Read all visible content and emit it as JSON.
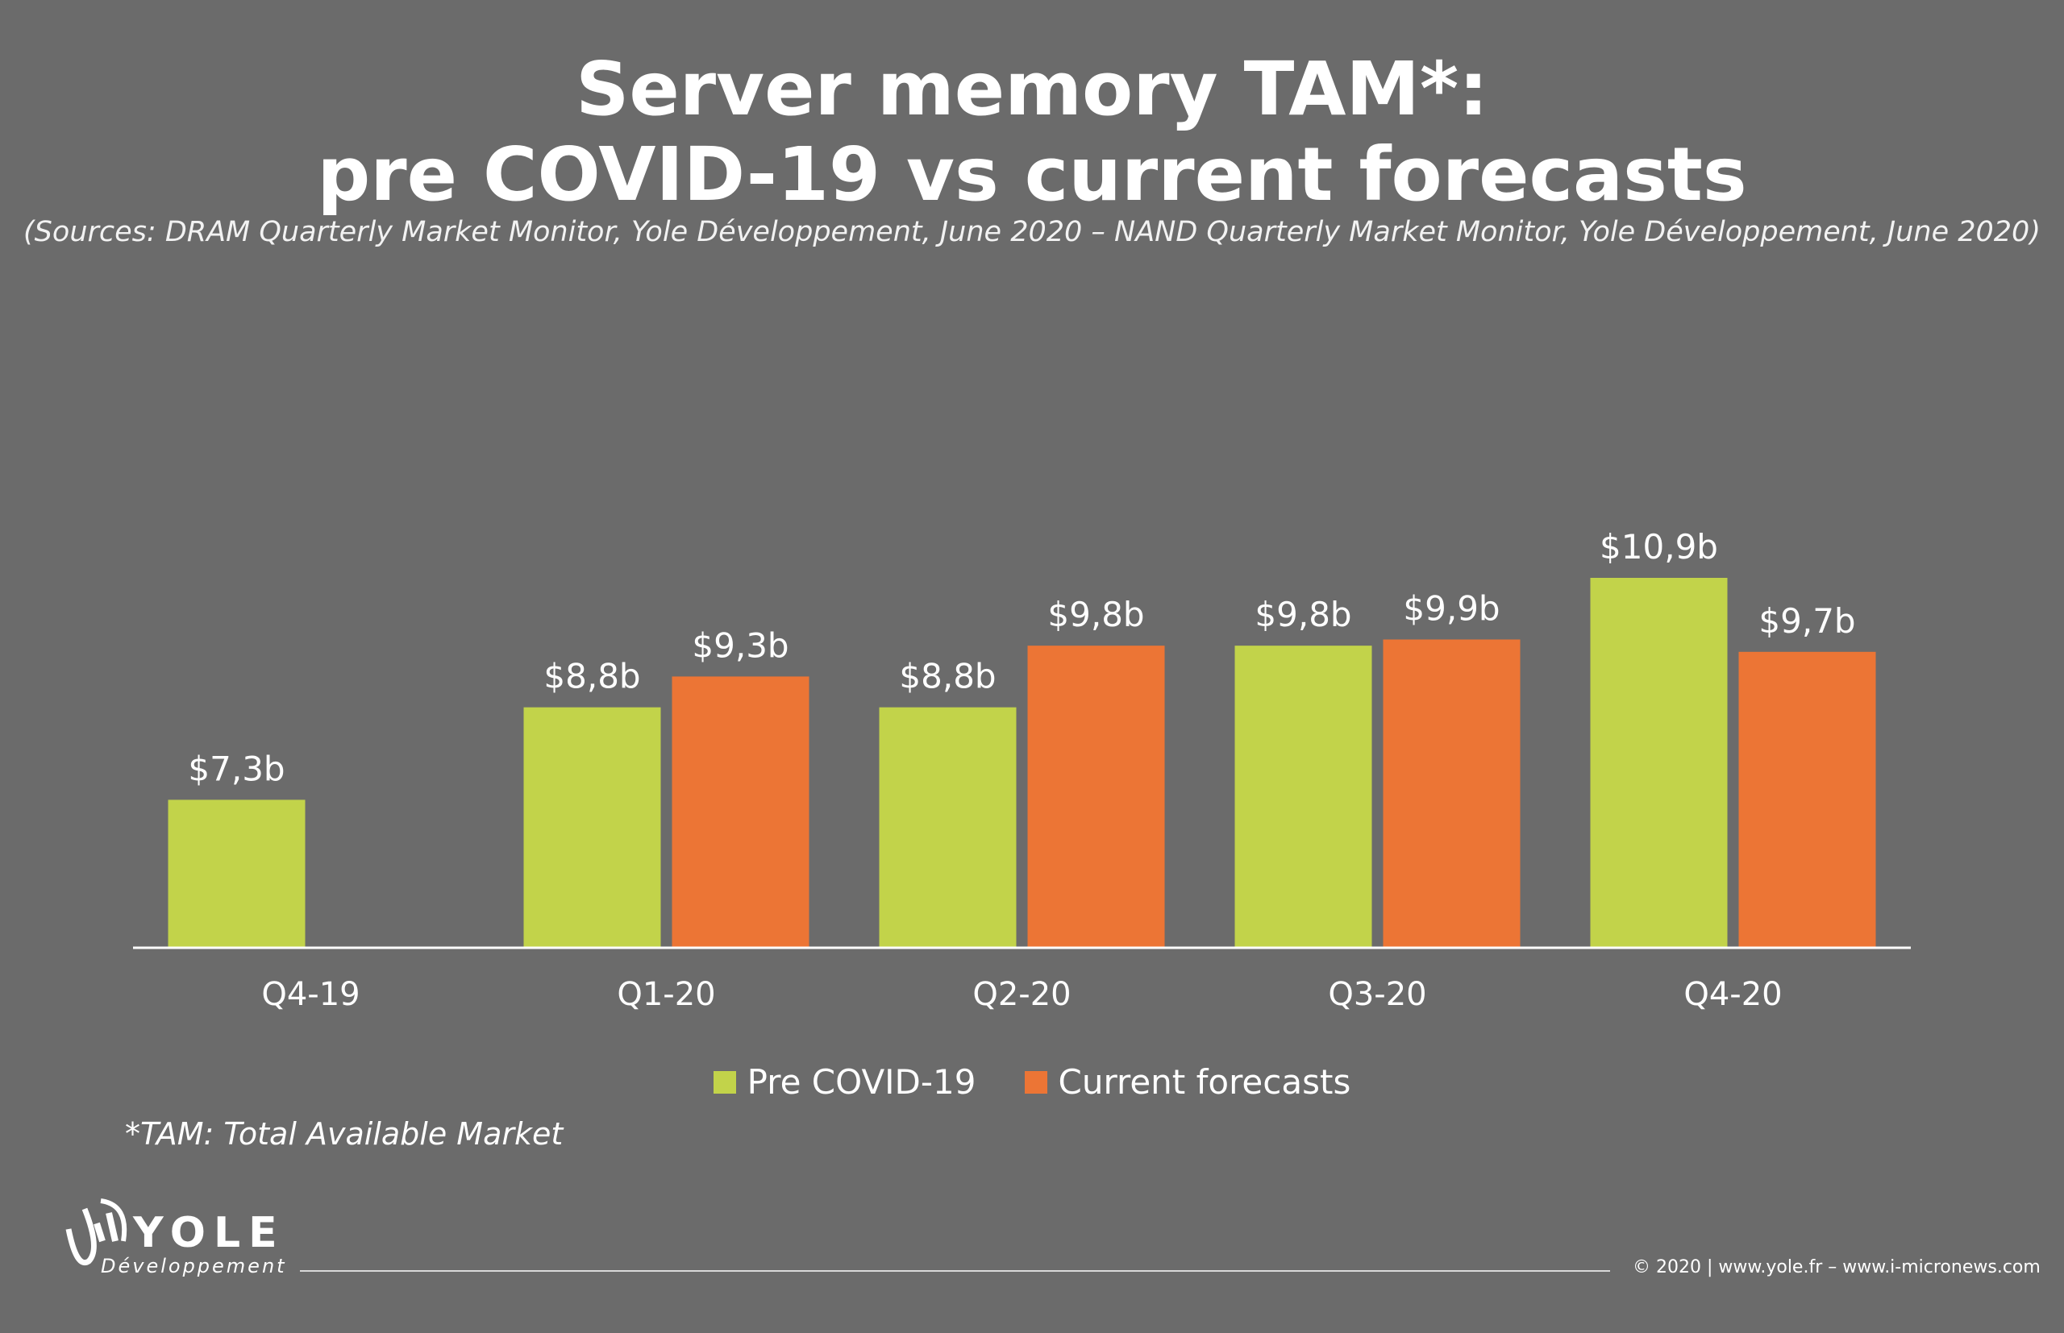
{
  "title_lines": [
    "Server memory TAM*:",
    "pre COVID-19 vs current forecasts"
  ],
  "subtitle": "(Sources: DRAM Quarterly Market Monitor, Yole Développement, June 2020 – NAND Quarterly Market Monitor, Yole Développement, June 2020)",
  "footnote": "*TAM: Total Available Market",
  "footer": "© 2020 | www.yole.fr – www.i-micronews.com",
  "logo": {
    "name": "YOLE",
    "sub": "Développement"
  },
  "colors": {
    "background": "#6b6b6b",
    "pre_covid": "#c2d34a",
    "current": "#ec7535",
    "text": "#ffffff"
  },
  "chart_data": {
    "type": "bar",
    "title": "Server memory TAM*: pre COVID-19 vs current forecasts",
    "categories": [
      "Q4-19",
      "Q1-20",
      "Q2-20",
      "Q3-20",
      "Q4-20"
    ],
    "series": [
      {
        "name": "Pre COVID-19",
        "color": "#c2d34a",
        "values": [
          7.3,
          8.8,
          8.8,
          9.8,
          10.9
        ],
        "labels": [
          "$7,3b",
          "$8,8b",
          "$8,8b",
          "$9,8b",
          "$10,9b"
        ]
      },
      {
        "name": "Current forecasts",
        "color": "#ec7535",
        "values": [
          null,
          9.3,
          9.8,
          9.9,
          9.7
        ],
        "labels": [
          null,
          "$9,3b",
          "$9,8b",
          "$9,9b",
          "$9,7b"
        ]
      }
    ],
    "unit": "$b",
    "legend_position": "bottom",
    "grid": false
  }
}
